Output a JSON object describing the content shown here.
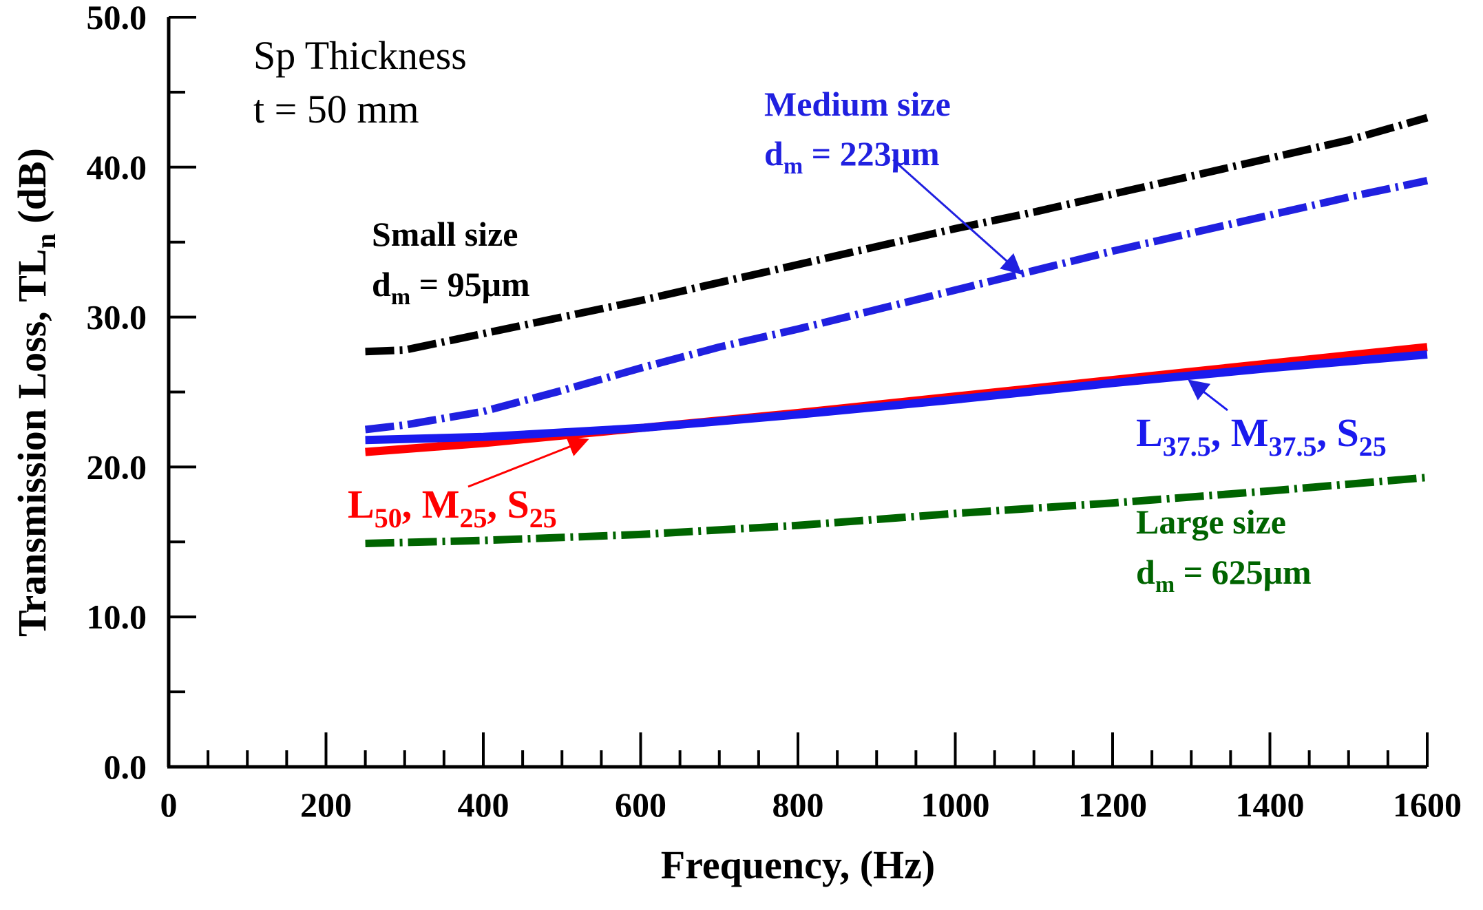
{
  "chart_data": {
    "type": "line",
    "title": "",
    "xlabel": "Frequency, (Hz)",
    "ylabel_main": "Transmission Loss, TL",
    "ylabel_sub": "n",
    "ylabel_unit": " (dB)",
    "xlim": [
      0,
      1600
    ],
    "ylim": [
      0,
      50
    ],
    "x_ticks": [
      {
        "value": 0,
        "label": "0"
      },
      {
        "value": 200,
        "label": "200"
      },
      {
        "value": 400,
        "label": "400"
      },
      {
        "value": 600,
        "label": "600"
      },
      {
        "value": 800,
        "label": "800"
      },
      {
        "value": 1000,
        "label": "1000"
      },
      {
        "value": 1200,
        "label": "1200"
      },
      {
        "value": 1400,
        "label": "1400"
      },
      {
        "value": 1600,
        "label": "1600"
      }
    ],
    "x_minor_step": 50,
    "y_ticks": [
      {
        "value": 0,
        "label": "0.0"
      },
      {
        "value": 10,
        "label": "10.0"
      },
      {
        "value": 20,
        "label": "20.0"
      },
      {
        "value": 30,
        "label": "30.0"
      },
      {
        "value": 40,
        "label": "40.0"
      },
      {
        "value": 50,
        "label": "50.0"
      }
    ],
    "y_minor_step": 5,
    "grid": false,
    "note_line1": "Sp Thickness",
    "note_line2": "t = 50 mm",
    "series": [
      {
        "name": "Small size",
        "color": "#000000",
        "style": "dashdot",
        "x": [
          250,
          300,
          400,
          500,
          600,
          700,
          800,
          900,
          1000,
          1100,
          1200,
          1300,
          1400,
          1500,
          1600
        ],
        "y": [
          27.7,
          27.8,
          28.9,
          30.0,
          31.1,
          32.3,
          33.5,
          34.7,
          35.9,
          37.0,
          38.2,
          39.4,
          40.6,
          41.8,
          43.3
        ]
      },
      {
        "name": "Medium size",
        "color": "#2020e0",
        "style": "dashdot",
        "x": [
          250,
          300,
          400,
          500,
          600,
          700,
          800,
          900,
          1000,
          1100,
          1200,
          1300,
          1400,
          1500,
          1600
        ],
        "y": [
          22.5,
          22.8,
          23.7,
          25.1,
          26.6,
          28.0,
          29.2,
          30.5,
          31.8,
          33.1,
          34.4,
          35.6,
          36.8,
          38.0,
          39.1
        ]
      },
      {
        "name": "L50, M25, S25",
        "color": "#ff0000",
        "style": "solid",
        "x": [
          250,
          400,
          600,
          800,
          1000,
          1200,
          1400,
          1600
        ],
        "y": [
          21.0,
          21.6,
          22.6,
          23.6,
          24.7,
          25.8,
          26.9,
          28.0
        ]
      },
      {
        "name": "L37.5, M37.5, S25",
        "color": "#1a1aee",
        "style": "solid",
        "x": [
          250,
          400,
          600,
          800,
          1000,
          1200,
          1400,
          1600
        ],
        "y": [
          21.8,
          22.0,
          22.6,
          23.5,
          24.5,
          25.6,
          26.6,
          27.5
        ]
      },
      {
        "name": "Large size",
        "color": "#006400",
        "style": "dashdot",
        "x": [
          250,
          400,
          600,
          800,
          1000,
          1200,
          1400,
          1600
        ],
        "y": [
          14.9,
          15.1,
          15.5,
          16.1,
          16.9,
          17.6,
          18.4,
          19.3
        ]
      }
    ],
    "annotations": {
      "small_title": "Small size",
      "small_dm_prefix": "d",
      "small_dm_sub": "m",
      "small_dm_value": " = 95μm",
      "medium_title": "Medium size",
      "medium_dm_prefix": "d",
      "medium_dm_sub": "m",
      "medium_dm_value": " = 223μm",
      "large_title": "Large size",
      "large_dm_prefix": "d",
      "large_dm_sub": "m",
      "large_dm_value": " = 625μm",
      "red_L": "L",
      "red_L_sub": "50",
      "red_sep1": ", M",
      "red_M_sub": "25",
      "red_sep2": ", S",
      "red_S_sub": "25",
      "blue_L": "L",
      "blue_L_sub": "37.5",
      "blue_sep1": ", M",
      "blue_M_sub": "37.5",
      "blue_sep2": ", S",
      "blue_S_sub": "25"
    },
    "colors": {
      "small": "#000000",
      "medium": "#2020e0",
      "red": "#ff0000",
      "blue": "#1a1aee",
      "large": "#006400"
    }
  }
}
